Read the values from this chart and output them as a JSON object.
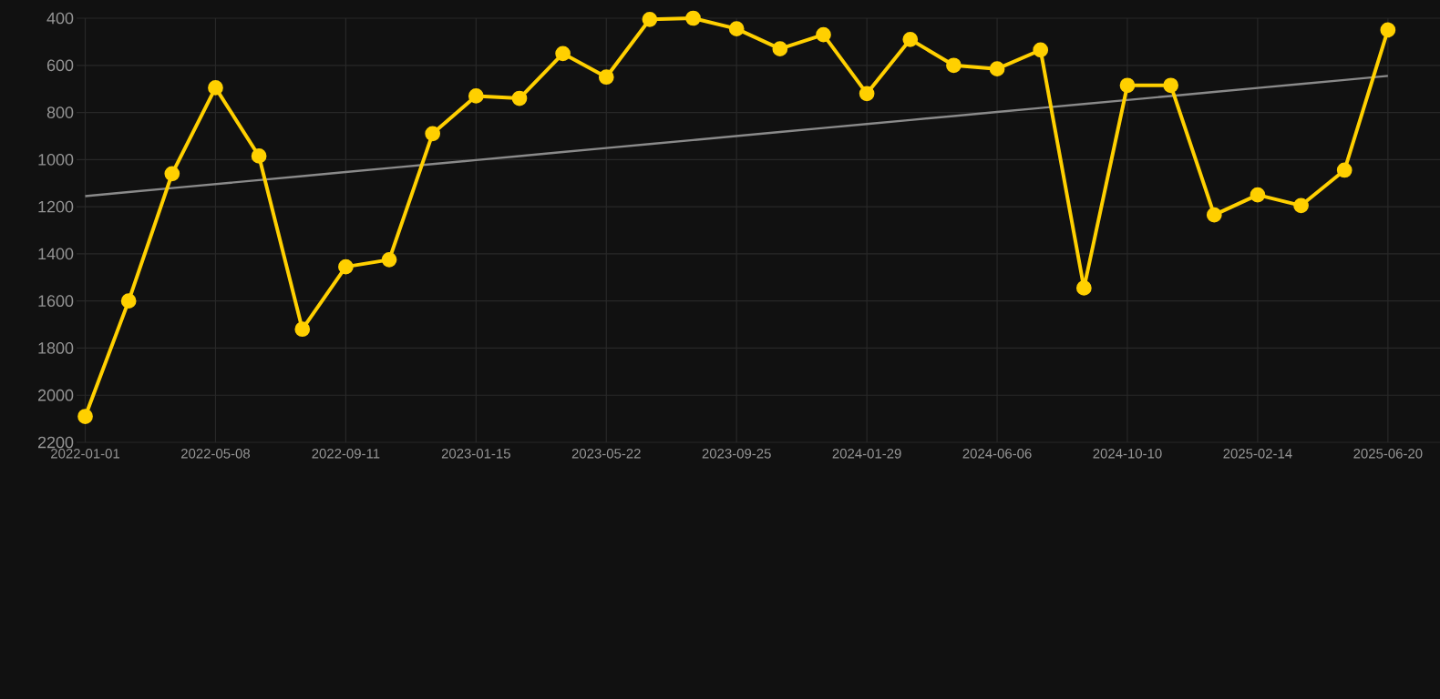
{
  "chart_data": {
    "type": "line",
    "categories": [
      "2022-01-01",
      null,
      null,
      "2022-05-08",
      null,
      null,
      "2022-09-11",
      null,
      null,
      "2023-01-15",
      null,
      null,
      "2023-05-22",
      null,
      null,
      "2023-09-25",
      null,
      null,
      "2024-01-29",
      null,
      null,
      "2024-06-06",
      null,
      null,
      "2024-10-10",
      null,
      null,
      "2025-02-14",
      null,
      null,
      "2025-06-20"
    ],
    "series": [
      {
        "color": "#ffd000",
        "marker": "circle",
        "values": [
          2090,
          1600,
          1060,
          695,
          985,
          1720,
          1455,
          1425,
          890,
          730,
          740,
          550,
          650,
          405,
          400,
          445,
          530,
          470,
          720,
          490,
          600,
          615,
          535,
          1545,
          685,
          685,
          1235,
          1150,
          1195,
          1045,
          450
        ]
      },
      {
        "type": "line",
        "color": "#8a8a8a",
        "marker": "none",
        "values": [
          1155,
          1138,
          1121,
          1104,
          1087,
          1070,
          1053,
          1036,
          1019,
          1002,
          985,
          968,
          951,
          934,
          917,
          900,
          883,
          866,
          849,
          832,
          815,
          798,
          781,
          764,
          747,
          730,
          713,
          696,
          679,
          662,
          645
        ]
      }
    ],
    "ylim": [
      2200,
      400
    ],
    "yticks": [
      400,
      600,
      800,
      1000,
      1200,
      1400,
      1600,
      1800,
      2000,
      2200
    ],
    "grid": true
  }
}
